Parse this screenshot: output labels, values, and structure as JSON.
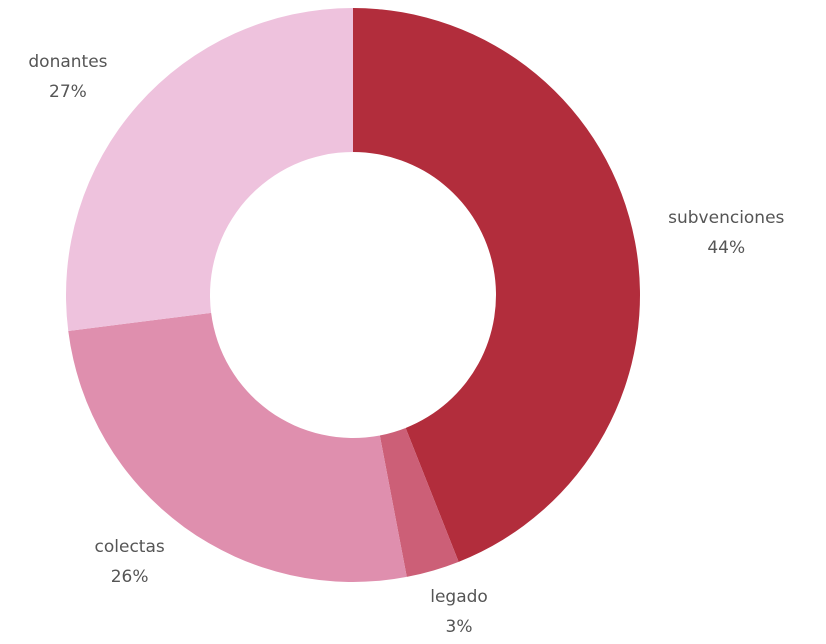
{
  "chart_data": {
    "type": "donut",
    "categories": [
      "subvenciones",
      "legado",
      "colectas",
      "donantes"
    ],
    "values": [
      44,
      3,
      26,
      27
    ],
    "value_labels": [
      "44%",
      "3%",
      "26%",
      "27%"
    ],
    "colors": [
      "#b22d3c",
      "#cc5f77",
      "#df8fae",
      "#eec2dd"
    ]
  }
}
